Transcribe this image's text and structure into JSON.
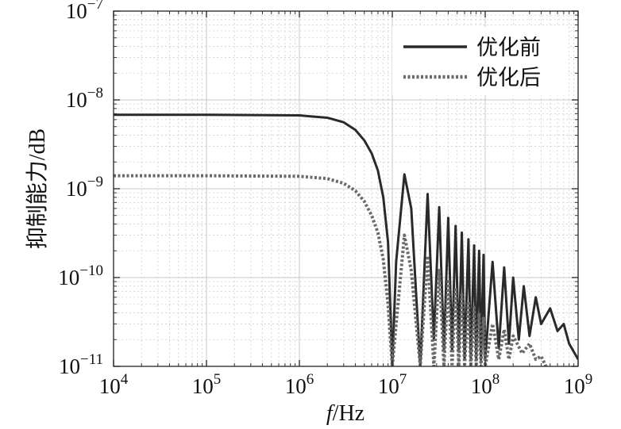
{
  "chart_data": {
    "type": "line",
    "title": "",
    "xlabel_italic": "f",
    "xlabel_rest": "/Hz",
    "ylabel": "抑制能力/dB",
    "xscale": "log",
    "yscale": "log",
    "xlim": [
      10000,
      1000000000
    ],
    "ylim": [
      1e-11,
      1e-07
    ],
    "grid": true,
    "legend_position": "top-right",
    "x_ticks": [
      {
        "base": "10",
        "exp": "4"
      },
      {
        "base": "10",
        "exp": "5"
      },
      {
        "base": "10",
        "exp": "6"
      },
      {
        "base": "10",
        "exp": "7"
      },
      {
        "base": "10",
        "exp": "8"
      },
      {
        "base": "10",
        "exp": "9"
      }
    ],
    "y_ticks": [
      {
        "base": "10",
        "exp": "−11"
      },
      {
        "base": "10",
        "exp": "−10"
      },
      {
        "base": "10",
        "exp": "−9"
      },
      {
        "base": "10",
        "exp": "−8"
      },
      {
        "base": "10",
        "exp": "−7"
      }
    ],
    "series": [
      {
        "name": "优化前",
        "style": "solid",
        "color": "#2a2a2a",
        "x": [
          10000,
          100000,
          1000000,
          2000000,
          3000000,
          4000000,
          5000000,
          6000000,
          7000000,
          8000000,
          9000000,
          10000000,
          11000000,
          13500000,
          16000000,
          20000000,
          24000000,
          28000000,
          32000000,
          36000000,
          40000000,
          44000000,
          48000000,
          52000000,
          56000000,
          60000000,
          66000000,
          70000000,
          76000000,
          80000000,
          86000000,
          90000000,
          96000000,
          100000000,
          120000000,
          140000000,
          160000000,
          180000000,
          200000000,
          230000000,
          260000000,
          300000000,
          350000000,
          400000000,
          500000000,
          600000000,
          700000000,
          800000000,
          1000000000
        ],
        "y": [
          6.8e-09,
          6.8e-09,
          6.7e-09,
          6.3e-09,
          5.6e-09,
          4.6e-09,
          3.5e-09,
          2.5e-09,
          1.6e-09,
          8e-10,
          2.5e-10,
          1e-11,
          1.5e-10,
          1.45e-09,
          6e-10,
          1e-11,
          8.7e-10,
          2e-11,
          6.2e-10,
          1.5e-11,
          4.7e-10,
          1.5e-11,
          3.8e-10,
          1.5e-11,
          3.2e-10,
          1.2e-11,
          2.7e-10,
          1.2e-11,
          2.3e-10,
          1.2e-11,
          2e-10,
          1.2e-11,
          1.8e-10,
          1.2e-11,
          1.5e-10,
          1.6e-11,
          1.3e-10,
          1.8e-11,
          1e-10,
          2e-11,
          8e-11,
          2.2e-11,
          6e-11,
          3e-11,
          4.5e-11,
          2.5e-11,
          3e-11,
          1.8e-11,
          1.2e-11
        ]
      },
      {
        "name": "优化后",
        "style": "dotted",
        "color": "#6a6a6a",
        "x": [
          10000,
          100000,
          1000000,
          2000000,
          3000000,
          4000000,
          5000000,
          6000000,
          7000000,
          8000000,
          9000000,
          10000000,
          11000000,
          13500000,
          16000000,
          20000000,
          24000000,
          28000000,
          32000000,
          36000000,
          40000000,
          44000000,
          48000000,
          52000000,
          56000000,
          60000000,
          66000000,
          70000000,
          76000000,
          80000000,
          86000000,
          90000000,
          96000000,
          100000000,
          120000000,
          140000000,
          160000000,
          180000000,
          200000000,
          250000000,
          300000000,
          350000000,
          400000000,
          450000000
        ],
        "y": [
          1.4e-09,
          1.4e-09,
          1.38e-09,
          1.3e-09,
          1.15e-09,
          9.5e-10,
          7.2e-10,
          5e-10,
          3.2e-10,
          1.6e-10,
          5e-11,
          1e-11,
          3e-11,
          3e-10,
          1.2e-10,
          1e-11,
          1.75e-10,
          1e-11,
          1.25e-10,
          1e-11,
          9.5e-11,
          1e-11,
          7.7e-11,
          1e-11,
          6.4e-11,
          1e-11,
          5.4e-11,
          1e-11,
          4.6e-11,
          1e-11,
          4e-11,
          1e-11,
          3.6e-11,
          1e-11,
          3e-11,
          1.2e-11,
          2.6e-11,
          1.2e-11,
          2.2e-11,
          1.4e-11,
          1.8e-11,
          1.2e-11,
          1.3e-11,
          1e-11
        ]
      }
    ]
  }
}
